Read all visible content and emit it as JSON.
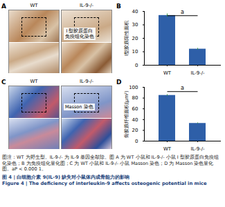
{
  "image_panels": [
    {
      "letter": "A",
      "groups": [
        "WT",
        "IL-9-/-"
      ],
      "stain": [
        "I 型胶原蛋白",
        "免疫组化染色"
      ]
    },
    {
      "letter": "C",
      "groups": [
        "WT",
        "IL-9-/-"
      ],
      "stain": [
        "Masson 染色"
      ]
    }
  ],
  "chart_letters": [
    "B",
    "D"
  ],
  "chart_data": [
    {
      "type": "bar",
      "y_label": "Ⅰ型胶原阳性面积",
      "categories": [
        "WT",
        "IL-9-/-"
      ],
      "values": [
        37,
        12
      ],
      "errors": [
        1.2,
        0.6
      ],
      "color": "#2e5fa8",
      "ylim": [
        0,
        40
      ],
      "yticks": [
        0,
        10,
        20,
        30,
        40
      ],
      "annotations": [
        {
          "text": "a"
        }
      ]
    },
    {
      "type": "bar",
      "y_label": "骨胶原纤维面积(μm²)",
      "categories": [
        "WT",
        "IL-9-/-"
      ],
      "values": [
        85,
        33
      ],
      "errors": [
        1.5,
        1
      ],
      "color": "#2e5fa8",
      "ylim": [
        0,
        100
      ],
      "yticks": [
        0,
        20,
        40,
        60,
        80,
        100
      ],
      "annotations": [
        {
          "text": "a"
        }
      ]
    }
  ],
  "caption": {
    "note": "图注：WT 为野生型。IL-9-/- 为 IL-9 基因全敲除。图 A 为 WT 小鼠和 IL-9-/- 小鼠 I 型胶原蛋白免疫组化染色；B 为免疫组化量化图；C 为 WT 小鼠和 IL-9-/- 小鼠 Masson 染色；D 为 Masson 染色量化图。aP < 0.000 1。",
    "title_cn": "图 4 | 白细胞介素 9(IL-9) 缺失对小鼠体内成骨能力的影响",
    "title_en": "Figure 4 | The deficiency of interleukin-9 affects osteogenic potential in mice"
  }
}
